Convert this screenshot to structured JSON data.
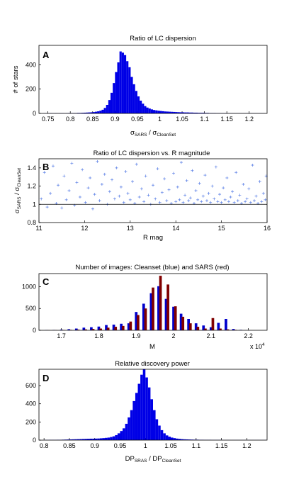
{
  "chart_data": [
    {
      "type": "bar",
      "panel": "A",
      "title": "Ratio of LC dispersion",
      "ylabel": "# of stars",
      "xlabel": "σ_SARS / σ_CleanSet",
      "xlabel_parts": {
        "main": "σ",
        "sub1": "SARS",
        "sep": " / σ",
        "sub2": "CleanSet"
      },
      "xlim": [
        0.73,
        1.24
      ],
      "ylim": [
        0,
        560
      ],
      "xticks": [
        "0.75",
        "0.8",
        "0.85",
        "0.9",
        "0.95",
        "1",
        "1.05",
        "1.1",
        "1.15",
        "1.2"
      ],
      "xtick_values": [
        0.75,
        0.8,
        0.85,
        0.9,
        0.95,
        1.0,
        1.05,
        1.1,
        1.15,
        1.2
      ],
      "yticks": [
        "0",
        "200",
        "400"
      ],
      "ytick_values": [
        0,
        200,
        400
      ],
      "bin_width": 0.005,
      "bin_start": 0.74,
      "values": [
        1,
        1,
        1,
        2,
        1,
        2,
        1,
        2,
        2,
        1,
        2,
        3,
        2,
        3,
        3,
        4,
        4,
        5,
        6,
        7,
        8,
        9,
        11,
        14,
        17,
        22,
        30,
        45,
        70,
        110,
        170,
        250,
        340,
        420,
        510,
        500,
        480,
        430,
        380,
        300,
        240,
        185,
        140,
        105,
        80,
        60,
        48,
        40,
        33,
        28,
        25,
        22,
        20,
        18,
        16,
        15,
        14,
        13,
        12,
        11,
        10,
        9,
        9,
        8,
        8,
        7,
        7,
        6,
        6,
        5,
        5,
        5,
        4,
        4,
        3,
        3,
        3,
        2,
        2,
        2,
        2,
        2,
        1,
        1,
        1,
        1,
        1,
        1,
        1,
        1,
        1,
        1,
        1,
        1,
        1,
        1,
        1,
        1,
        1
      ],
      "color": "#0000e6"
    },
    {
      "type": "scatter",
      "panel": "B",
      "title": "Ratio of LC dispersion vs. R magnitude",
      "xlabel": "R mag",
      "ylabel": "σ_SARS / σ_CleanSet",
      "ylabel_parts": {
        "main": "σ",
        "sub1": "SARS",
        "sep": " / σ",
        "sub2": "CleanSet"
      },
      "xlim": [
        11,
        16
      ],
      "ylim": [
        0.8,
        1.5
      ],
      "xticks": [
        "11",
        "12",
        "13",
        "14",
        "15",
        "16"
      ],
      "xtick_values": [
        11,
        12,
        13,
        14,
        15,
        16
      ],
      "yticks": [
        "0.8",
        "1",
        "1.2",
        "1.4"
      ],
      "ytick_values": [
        0.8,
        1.0,
        1.2,
        1.4
      ],
      "reference_line": 1.0,
      "marker": "+",
      "color": "#5a7fe6",
      "points": [
        [
          11.05,
          1.06
        ],
        [
          11.12,
          1.35
        ],
        [
          11.18,
          0.97
        ],
        [
          11.25,
          1.12
        ],
        [
          11.31,
          1.42
        ],
        [
          11.38,
          1.01
        ],
        [
          11.42,
          1.21
        ],
        [
          11.5,
          0.96
        ],
        [
          11.55,
          1.31
        ],
        [
          11.6,
          1.05
        ],
        [
          11.66,
          1.15
        ],
        [
          11.72,
          1.45
        ],
        [
          11.78,
          0.99
        ],
        [
          11.83,
          1.24
        ],
        [
          11.9,
          1.08
        ],
        [
          11.95,
          1.38
        ],
        [
          12.02,
          1.02
        ],
        [
          12.08,
          1.18
        ],
        [
          12.12,
          1.29
        ],
        [
          12.18,
          0.95
        ],
        [
          12.22,
          1.11
        ],
        [
          12.28,
          1.47
        ],
        [
          12.33,
          1.04
        ],
        [
          12.38,
          1.22
        ],
        [
          12.44,
          1.33
        ],
        [
          12.5,
          1.0
        ],
        [
          12.55,
          1.14
        ],
        [
          12.6,
          1.27
        ],
        [
          12.66,
          1.06
        ],
        [
          12.7,
          1.4
        ],
        [
          12.76,
          1.09
        ],
        [
          12.8,
          1.19
        ],
        [
          12.86,
          1.02
        ],
        [
          12.9,
          1.36
        ],
        [
          12.95,
          1.12
        ],
        [
          13.0,
          1.05
        ],
        [
          13.05,
          1.25
        ],
        [
          13.1,
          1.01
        ],
        [
          13.14,
          1.44
        ],
        [
          13.2,
          1.08
        ],
        [
          13.25,
          1.17
        ],
        [
          13.3,
          1.03
        ],
        [
          13.34,
          1.31
        ],
        [
          13.4,
          1.1
        ],
        [
          13.45,
          1.0
        ],
        [
          13.5,
          1.21
        ],
        [
          13.55,
          1.06
        ],
        [
          13.6,
          1.39
        ],
        [
          13.65,
          1.02
        ],
        [
          13.7,
          1.13
        ],
        [
          13.75,
          1.28
        ],
        [
          13.8,
          1.04
        ],
        [
          13.85,
          1.16
        ],
        [
          13.9,
          1.01
        ],
        [
          13.95,
          1.34
        ],
        [
          14.0,
          1.03
        ],
        [
          14.04,
          1.19
        ],
        [
          14.08,
          1.05
        ],
        [
          14.12,
          1.46
        ],
        [
          14.16,
          1.02
        ],
        [
          14.2,
          1.1
        ],
        [
          14.24,
          1.26
        ],
        [
          14.28,
          1.04
        ],
        [
          14.32,
          1.07
        ],
        [
          14.36,
          1.37
        ],
        [
          14.4,
          1.01
        ],
        [
          14.44,
          1.15
        ],
        [
          14.48,
          1.05
        ],
        [
          14.52,
          1.23
        ],
        [
          14.56,
          1.03
        ],
        [
          14.6,
          1.09
        ],
        [
          14.64,
          1.32
        ],
        [
          14.68,
          1.04
        ],
        [
          14.72,
          1.12
        ],
        [
          14.76,
          1.02
        ],
        [
          14.8,
          1.2
        ],
        [
          14.84,
          1.06
        ],
        [
          14.88,
          1.41
        ],
        [
          14.92,
          1.03
        ],
        [
          14.96,
          1.11
        ],
        [
          15.0,
          1.02
        ],
        [
          15.04,
          1.18
        ],
        [
          15.08,
          1.05
        ],
        [
          15.12,
          1.29
        ],
        [
          15.16,
          1.03
        ],
        [
          15.2,
          1.08
        ],
        [
          15.24,
          1.14
        ],
        [
          15.28,
          1.02
        ],
        [
          15.32,
          1.35
        ],
        [
          15.36,
          1.04
        ],
        [
          15.4,
          1.1
        ],
        [
          15.44,
          1.01
        ],
        [
          15.48,
          1.22
        ],
        [
          15.52,
          1.03
        ],
        [
          15.56,
          1.06
        ],
        [
          15.6,
          1.17
        ],
        [
          15.64,
          1.02
        ],
        [
          15.68,
          1.43
        ],
        [
          15.72,
          1.04
        ],
        [
          15.76,
          1.09
        ],
        [
          15.8,
          1.01
        ],
        [
          15.84,
          1.25
        ],
        [
          15.88,
          1.03
        ],
        [
          15.92,
          1.12
        ],
        [
          15.96,
          1.05
        ],
        [
          15.98,
          1.31
        ]
      ]
    },
    {
      "type": "bar",
      "panel": "C",
      "title": "Number of images: Cleanset (blue) and SARS (red)",
      "xlabel": "M",
      "exponent_label": "x 10",
      "exponent_power": "4",
      "xlim": [
        1.64,
        2.25
      ],
      "ylim": [
        0,
        1300
      ],
      "xticks": [
        "1.7",
        "1.8",
        "1.9",
        "2",
        "2.1",
        "2.2"
      ],
      "xtick_values": [
        1.7,
        1.8,
        1.9,
        2.0,
        2.1,
        2.2
      ],
      "yticks": [
        "0",
        "500",
        "1000"
      ],
      "ytick_values": [
        0,
        500,
        1000
      ],
      "series": [
        {
          "color": "#0000cc",
          "x": [
            1.66,
            1.68,
            1.7,
            1.72,
            1.74,
            1.76,
            1.78,
            1.8,
            1.82,
            1.84,
            1.86,
            1.88,
            1.9,
            1.92,
            1.94,
            1.96,
            1.98,
            2.0,
            2.02,
            2.04,
            2.06,
            2.08,
            2.1,
            2.12,
            2.14,
            2.16,
            2.18
          ],
          "values": [
            5,
            8,
            15,
            25,
            40,
            60,
            70,
            85,
            120,
            130,
            150,
            160,
            420,
            610,
            850,
            1010,
            720,
            540,
            380,
            260,
            160,
            110,
            70,
            170,
            260,
            30,
            10
          ]
        },
        {
          "color": "#800000",
          "x": [
            1.665,
            1.685,
            1.705,
            1.725,
            1.745,
            1.765,
            1.785,
            1.805,
            1.825,
            1.845,
            1.865,
            1.885,
            1.905,
            1.925,
            1.945,
            1.965,
            1.985,
            2.005,
            2.025,
            2.045,
            2.065,
            2.085,
            2.105,
            2.125,
            2.145,
            2.165
          ],
          "values": [
            3,
            5,
            8,
            10,
            15,
            20,
            30,
            40,
            60,
            80,
            100,
            200,
            350,
            500,
            980,
            1250,
            1050,
            550,
            310,
            160,
            80,
            40,
            280,
            40,
            20,
            10
          ]
        }
      ]
    },
    {
      "type": "bar",
      "panel": "D",
      "title": "Relative discovery power",
      "xlabel": "DP_SRAS / DP_CleanSet",
      "xlabel_parts": {
        "main": "DP",
        "sub1": "SRAS",
        "sep": " / DP",
        "sub2": "CleanSet"
      },
      "xlim": [
        0.79,
        1.24
      ],
      "ylim": [
        0,
        780
      ],
      "xticks": [
        "0.8",
        "0.85",
        "0.9",
        "0.95",
        "1",
        "1.05",
        "1.1",
        "1.15",
        "1.2"
      ],
      "xtick_values": [
        0.8,
        0.85,
        0.9,
        0.95,
        1.0,
        1.05,
        1.1,
        1.15,
        1.2
      ],
      "yticks": [
        "0",
        "200",
        "400",
        "600"
      ],
      "ytick_values": [
        0,
        200,
        400,
        600
      ],
      "bin_width": 0.005,
      "bin_start": 0.8,
      "values": [
        2,
        2,
        3,
        3,
        3,
        4,
        4,
        5,
        6,
        7,
        8,
        9,
        10,
        11,
        12,
        13,
        14,
        15,
        16,
        16,
        17,
        18,
        20,
        22,
        25,
        28,
        34,
        42,
        55,
        75,
        100,
        130,
        180,
        250,
        330,
        430,
        520,
        620,
        720,
        780,
        690,
        580,
        450,
        330,
        230,
        160,
        110,
        75,
        52,
        38,
        28,
        22,
        17,
        14,
        11,
        9,
        8,
        7,
        6,
        5,
        5,
        4,
        4,
        3,
        3,
        3,
        2,
        2,
        2,
        2,
        1,
        1,
        1,
        1,
        1,
        1,
        1,
        1,
        1,
        1,
        1,
        1,
        1,
        1,
        1,
        1,
        1,
        1,
        1,
        1
      ],
      "color": "#0000e6"
    }
  ]
}
